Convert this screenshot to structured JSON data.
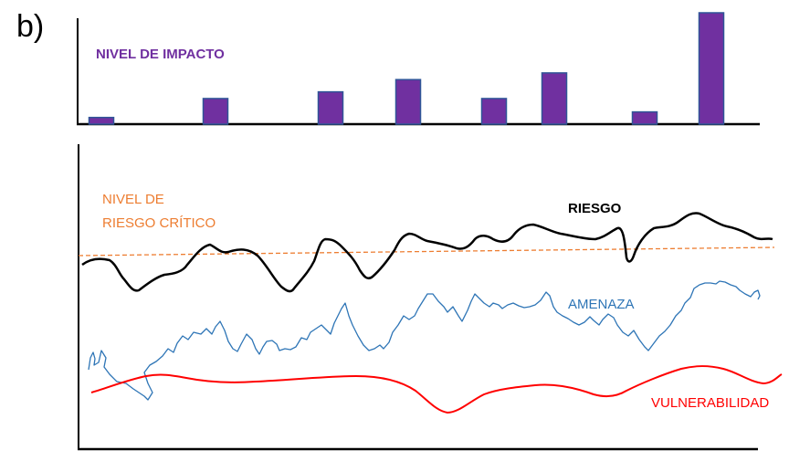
{
  "panel_label": "b)",
  "impact": {
    "title": "NIVEL DE IMPACTO",
    "title_color": "#7030A0",
    "bar_fill": "#7030A0",
    "bar_stroke": "#2F5597",
    "values": [
      0.06,
      0.23,
      0.29,
      0.4,
      0.23,
      0.46,
      0.11,
      1.0
    ]
  },
  "risk_chart": {
    "critical_label_line1": "NIVEL DE",
    "critical_label_line2": "RIESGO CRÍTICO",
    "critical_color": "#ED7D31",
    "risk_label": "RIESGO",
    "risk_color": "#000000",
    "threat_label": "AMENAZA",
    "threat_color": "#2E75B6",
    "vulnerability_label": "VULNERABILIDAD",
    "vulnerability_color": "#FF0000"
  }
}
